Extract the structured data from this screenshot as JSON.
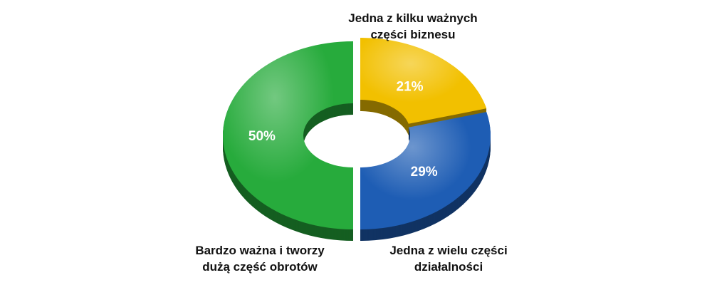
{
  "chart_data": {
    "type": "pie",
    "categories": [
      "Jedna z kilku ważnych\nczęści biznesu",
      "Jedna z wielu części\ndziałalności",
      "Bardzo ważna i tworzy\ndużą część obrotów"
    ],
    "values": [
      21,
      29,
      50
    ],
    "value_labels": [
      "21%",
      "29%",
      "50%"
    ],
    "colors": [
      "#f2c000",
      "#1e5db4",
      "#27ab3c"
    ],
    "legend": "none",
    "grid": false
  }
}
